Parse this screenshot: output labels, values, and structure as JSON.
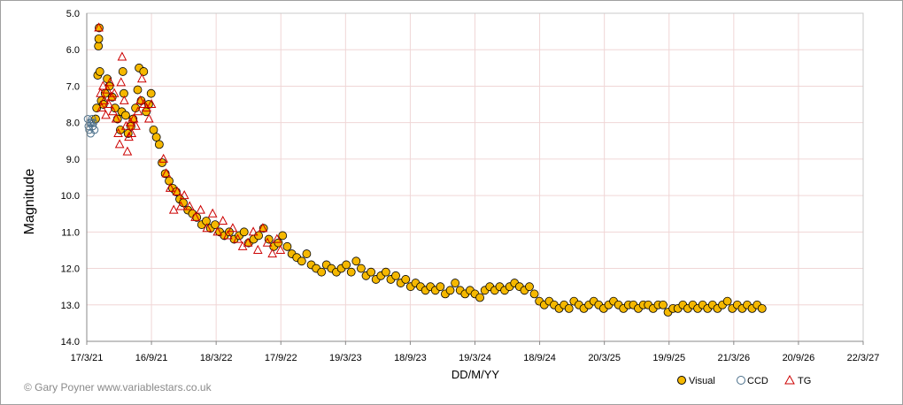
{
  "chart_data": {
    "type": "scatter",
    "title": "",
    "xlabel": "DD/M/YY",
    "ylabel": "Magnitude",
    "y_inverted": true,
    "ylim": [
      5.0,
      14.0
    ],
    "y_ticks": [
      "5.0",
      "6.0",
      "7.0",
      "8.0",
      "9.0",
      "10.0",
      "11.0",
      "12.0",
      "13.0",
      "14.0"
    ],
    "x_ticks": [
      "17/3/21",
      "16/9/21",
      "18/3/22",
      "17/9/22",
      "19/3/23",
      "18/9/23",
      "19/3/24",
      "18/9/24",
      "20/3/25",
      "19/9/25",
      "21/3/26",
      "20/9/26",
      "22/3/27"
    ],
    "xlim": [
      "2021-03-17",
      "2027-03-22"
    ],
    "grid": true,
    "legend_position": "bottom-right",
    "series": [
      {
        "name": "Visual",
        "color": "#f5b800",
        "marker": "filled-circle",
        "points": [
          [
            "2021-04-11",
            7.9
          ],
          [
            "2021-04-14",
            7.6
          ],
          [
            "2021-04-17",
            6.7
          ],
          [
            "2021-04-19",
            5.9
          ],
          [
            "2021-04-20",
            5.7
          ],
          [
            "2021-04-21",
            5.4
          ],
          [
            "2021-04-23",
            6.6
          ],
          [
            "2021-04-27",
            7.4
          ],
          [
            "2021-05-03",
            7.5
          ],
          [
            "2021-05-08",
            7.2
          ],
          [
            "2021-05-14",
            6.8
          ],
          [
            "2021-05-20",
            7.0
          ],
          [
            "2021-05-28",
            7.3
          ],
          [
            "2021-06-05",
            7.6
          ],
          [
            "2021-06-12",
            7.9
          ],
          [
            "2021-06-20",
            8.2
          ],
          [
            "2021-06-24",
            7.7
          ],
          [
            "2021-06-27",
            6.6
          ],
          [
            "2021-06-30",
            7.2
          ],
          [
            "2021-07-05",
            7.8
          ],
          [
            "2021-07-12",
            8.3
          ],
          [
            "2021-07-20",
            8.1
          ],
          [
            "2021-07-26",
            7.9
          ],
          [
            "2021-08-02",
            7.6
          ],
          [
            "2021-08-08",
            7.1
          ],
          [
            "2021-08-12",
            6.5
          ],
          [
            "2021-08-18",
            7.4
          ],
          [
            "2021-08-25",
            6.6
          ],
          [
            "2021-09-01",
            7.7
          ],
          [
            "2021-09-08",
            7.5
          ],
          [
            "2021-09-15",
            7.2
          ],
          [
            "2021-09-22",
            8.2
          ],
          [
            "2021-09-30",
            8.4
          ],
          [
            "2021-10-08",
            8.6
          ],
          [
            "2021-10-16",
            9.1
          ],
          [
            "2021-10-25",
            9.4
          ],
          [
            "2021-11-05",
            9.6
          ],
          [
            "2021-11-15",
            9.8
          ],
          [
            "2021-11-25",
            9.9
          ],
          [
            "2021-12-05",
            10.1
          ],
          [
            "2021-12-15",
            10.2
          ],
          [
            "2021-12-28",
            10.4
          ],
          [
            "2022-01-10",
            10.5
          ],
          [
            "2022-01-22",
            10.6
          ],
          [
            "2022-02-05",
            10.8
          ],
          [
            "2022-02-18",
            10.7
          ],
          [
            "2022-03-02",
            10.9
          ],
          [
            "2022-03-15",
            10.8
          ],
          [
            "2022-03-28",
            11.0
          ],
          [
            "2022-04-10",
            11.1
          ],
          [
            "2022-04-24",
            11.0
          ],
          [
            "2022-05-08",
            11.2
          ],
          [
            "2022-05-22",
            11.1
          ],
          [
            "2022-06-05",
            11.0
          ],
          [
            "2022-06-18",
            11.3
          ],
          [
            "2022-07-02",
            11.2
          ],
          [
            "2022-07-16",
            11.1
          ],
          [
            "2022-07-30",
            10.9
          ],
          [
            "2022-08-14",
            11.2
          ],
          [
            "2022-08-28",
            11.4
          ],
          [
            "2022-09-10",
            11.3
          ],
          [
            "2022-09-22",
            11.1
          ],
          [
            "2022-10-05",
            11.4
          ],
          [
            "2022-10-18",
            11.6
          ],
          [
            "2022-11-01",
            11.7
          ],
          [
            "2022-11-15",
            11.8
          ],
          [
            "2022-11-29",
            11.6
          ],
          [
            "2022-12-12",
            11.9
          ],
          [
            "2022-12-26",
            12.0
          ],
          [
            "2023-01-10",
            12.1
          ],
          [
            "2023-01-24",
            11.9
          ],
          [
            "2023-02-07",
            12.0
          ],
          [
            "2023-02-21",
            12.1
          ],
          [
            "2023-03-07",
            12.0
          ],
          [
            "2023-03-21",
            11.9
          ],
          [
            "2023-04-04",
            12.1
          ],
          [
            "2023-04-18",
            11.8
          ],
          [
            "2023-05-02",
            12.0
          ],
          [
            "2023-05-16",
            12.2
          ],
          [
            "2023-05-30",
            12.1
          ],
          [
            "2023-06-13",
            12.3
          ],
          [
            "2023-06-27",
            12.2
          ],
          [
            "2023-07-11",
            12.1
          ],
          [
            "2023-07-25",
            12.3
          ],
          [
            "2023-08-08",
            12.2
          ],
          [
            "2023-08-22",
            12.4
          ],
          [
            "2023-09-05",
            12.3
          ],
          [
            "2023-09-19",
            12.5
          ],
          [
            "2023-10-03",
            12.4
          ],
          [
            "2023-10-17",
            12.5
          ],
          [
            "2023-10-31",
            12.6
          ],
          [
            "2023-11-14",
            12.5
          ],
          [
            "2023-11-28",
            12.6
          ],
          [
            "2023-12-12",
            12.5
          ],
          [
            "2023-12-26",
            12.7
          ],
          [
            "2024-01-09",
            12.6
          ],
          [
            "2024-01-23",
            12.4
          ],
          [
            "2024-02-06",
            12.6
          ],
          [
            "2024-02-20",
            12.7
          ],
          [
            "2024-03-05",
            12.6
          ],
          [
            "2024-03-19",
            12.7
          ],
          [
            "2024-04-02",
            12.8
          ],
          [
            "2024-04-16",
            12.6
          ],
          [
            "2024-04-30",
            12.5
          ],
          [
            "2024-05-14",
            12.6
          ],
          [
            "2024-05-28",
            12.5
          ],
          [
            "2024-06-11",
            12.6
          ],
          [
            "2024-06-25",
            12.5
          ],
          [
            "2024-07-09",
            12.4
          ],
          [
            "2024-07-23",
            12.5
          ],
          [
            "2024-08-06",
            12.6
          ],
          [
            "2024-08-20",
            12.5
          ],
          [
            "2024-09-03",
            12.7
          ],
          [
            "2024-09-17",
            12.9
          ],
          [
            "2024-10-01",
            13.0
          ],
          [
            "2024-10-15",
            12.9
          ],
          [
            "2024-10-29",
            13.0
          ],
          [
            "2024-11-12",
            13.1
          ],
          [
            "2024-11-26",
            13.0
          ],
          [
            "2024-12-10",
            13.1
          ],
          [
            "2024-12-24",
            12.9
          ],
          [
            "2025-01-07",
            13.0
          ],
          [
            "2025-01-21",
            13.1
          ],
          [
            "2025-02-04",
            13.0
          ],
          [
            "2025-02-18",
            12.9
          ],
          [
            "2025-03-04",
            13.0
          ],
          [
            "2025-03-18",
            13.1
          ],
          [
            "2025-04-01",
            13.0
          ],
          [
            "2025-04-15",
            12.9
          ],
          [
            "2025-04-29",
            13.0
          ],
          [
            "2025-05-13",
            13.1
          ],
          [
            "2025-05-27",
            13.0
          ],
          [
            "2025-06-10",
            13.0
          ],
          [
            "2025-06-24",
            13.1
          ],
          [
            "2025-07-08",
            13.0
          ],
          [
            "2025-07-22",
            13.0
          ],
          [
            "2025-08-05",
            13.1
          ],
          [
            "2025-08-19",
            13.0
          ],
          [
            "2025-09-02",
            13.0
          ],
          [
            "2025-09-16",
            13.2
          ],
          [
            "2025-09-30",
            13.1
          ],
          [
            "2025-10-14",
            13.1
          ],
          [
            "2025-10-28",
            13.0
          ],
          [
            "2025-11-11",
            13.1
          ],
          [
            "2025-11-25",
            13.0
          ],
          [
            "2025-12-09",
            13.1
          ],
          [
            "2025-12-23",
            13.0
          ],
          [
            "2026-01-06",
            13.1
          ],
          [
            "2026-01-20",
            13.0
          ],
          [
            "2026-02-03",
            13.1
          ],
          [
            "2026-02-17",
            13.0
          ],
          [
            "2026-03-03",
            12.9
          ],
          [
            "2026-03-17",
            13.1
          ],
          [
            "2026-03-31",
            13.0
          ],
          [
            "2026-04-14",
            13.1
          ],
          [
            "2026-04-28",
            13.0
          ],
          [
            "2026-05-12",
            13.1
          ],
          [
            "2026-05-26",
            13.0
          ],
          [
            "2026-06-09",
            13.1
          ]
        ]
      },
      {
        "name": "CCD",
        "color": "#4a6f8a",
        "marker": "open-circle",
        "points": [
          [
            "2021-03-20",
            7.9
          ],
          [
            "2021-03-22",
            8.1
          ],
          [
            "2021-03-24",
            8.2
          ],
          [
            "2021-03-26",
            8.0
          ],
          [
            "2021-03-28",
            8.3
          ],
          [
            "2021-03-30",
            8.0
          ],
          [
            "2021-04-01",
            7.9
          ],
          [
            "2021-04-03",
            8.1
          ],
          [
            "2021-04-05",
            8.0
          ],
          [
            "2021-04-08",
            8.2
          ]
        ]
      },
      {
        "name": "TG",
        "color": "#cc0000",
        "marker": "open-triangle",
        "points": [
          [
            "2021-04-20",
            5.4
          ],
          [
            "2021-04-25",
            7.2
          ],
          [
            "2021-04-28",
            7.6
          ],
          [
            "2021-05-02",
            7.0
          ],
          [
            "2021-05-06",
            7.4
          ],
          [
            "2021-05-10",
            7.8
          ],
          [
            "2021-05-14",
            7.1
          ],
          [
            "2021-05-18",
            7.5
          ],
          [
            "2021-05-22",
            6.9
          ],
          [
            "2021-05-26",
            7.3
          ],
          [
            "2021-05-30",
            7.7
          ],
          [
            "2021-06-03",
            7.2
          ],
          [
            "2021-06-08",
            7.9
          ],
          [
            "2021-06-14",
            8.3
          ],
          [
            "2021-06-18",
            8.6
          ],
          [
            "2021-06-22",
            6.9
          ],
          [
            "2021-06-25",
            6.2
          ],
          [
            "2021-07-01",
            7.4
          ],
          [
            "2021-07-06",
            8.1
          ],
          [
            "2021-07-10",
            8.8
          ],
          [
            "2021-07-14",
            8.4
          ],
          [
            "2021-07-18",
            8.0
          ],
          [
            "2021-07-22",
            8.3
          ],
          [
            "2021-07-28",
            7.9
          ],
          [
            "2021-08-03",
            8.1
          ],
          [
            "2021-08-09",
            7.7
          ],
          [
            "2021-08-15",
            7.4
          ],
          [
            "2021-08-20",
            6.8
          ],
          [
            "2021-08-26",
            7.5
          ],
          [
            "2021-09-02",
            7.6
          ],
          [
            "2021-09-09",
            7.9
          ],
          [
            "2021-09-16",
            7.5
          ],
          [
            "2021-10-20",
            9.0
          ],
          [
            "2021-10-28",
            9.4
          ],
          [
            "2021-11-08",
            9.8
          ],
          [
            "2021-11-18",
            10.4
          ],
          [
            "2021-11-28",
            9.9
          ],
          [
            "2021-12-08",
            10.3
          ],
          [
            "2021-12-18",
            10.0
          ],
          [
            "2022-01-02",
            10.3
          ],
          [
            "2022-01-18",
            10.6
          ],
          [
            "2022-02-02",
            10.4
          ],
          [
            "2022-02-20",
            10.9
          ],
          [
            "2022-03-08",
            10.5
          ],
          [
            "2022-03-22",
            11.0
          ],
          [
            "2022-04-06",
            10.7
          ],
          [
            "2022-04-20",
            11.1
          ],
          [
            "2022-05-04",
            10.9
          ],
          [
            "2022-05-18",
            11.2
          ],
          [
            "2022-06-01",
            11.4
          ],
          [
            "2022-06-16",
            11.3
          ],
          [
            "2022-07-01",
            11.0
          ],
          [
            "2022-07-14",
            11.5
          ],
          [
            "2022-07-28",
            10.9
          ],
          [
            "2022-08-10",
            11.3
          ],
          [
            "2022-08-24",
            11.6
          ],
          [
            "2022-09-06",
            11.2
          ],
          [
            "2022-09-16",
            11.5
          ]
        ]
      }
    ]
  },
  "legend": {
    "items": [
      {
        "label": "Visual"
      },
      {
        "label": "CCD"
      },
      {
        "label": "TG"
      }
    ]
  },
  "credit": "© Gary Poyner  www.variablestars.co.uk"
}
